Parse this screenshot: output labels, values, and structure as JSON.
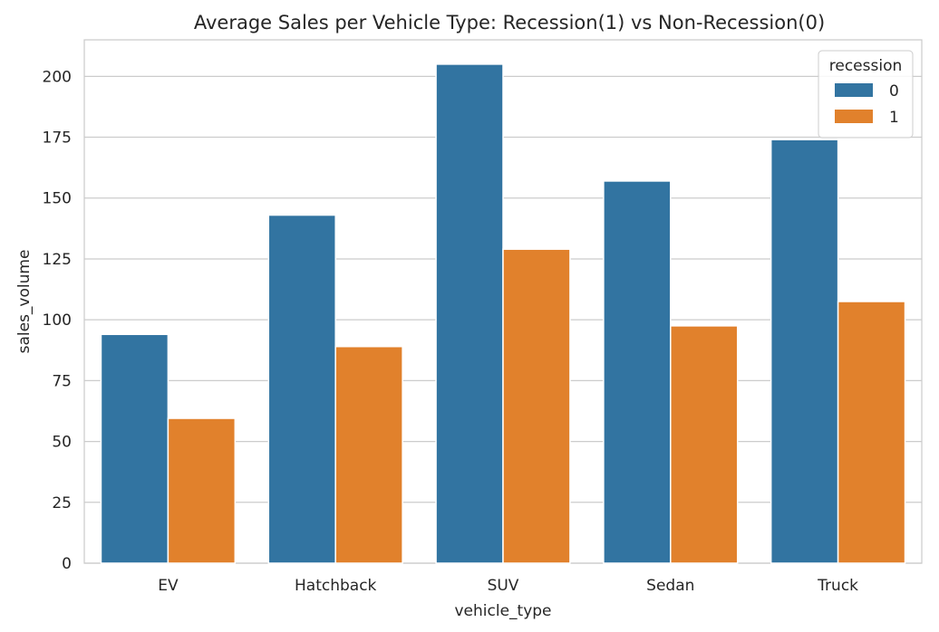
{
  "chart_data": {
    "type": "bar",
    "title": "Average Sales per Vehicle Type: Recession(1) vs Non-Recession(0)",
    "xlabel": "vehicle_type",
    "ylabel": "sales_volume",
    "categories": [
      "EV",
      "Hatchback",
      "SUV",
      "Sedan",
      "Truck"
    ],
    "series": [
      {
        "name": "0",
        "color": "#3274a1",
        "values": [
          94,
          143,
          205,
          157,
          174
        ]
      },
      {
        "name": "1",
        "color": "#e1812c",
        "values": [
          59.5,
          89,
          129,
          97.5,
          107.5
        ]
      }
    ],
    "ylim": [
      0,
      215
    ],
    "yticks": [
      0,
      25,
      50,
      75,
      100,
      125,
      150,
      175,
      200
    ],
    "grid": true,
    "legend": {
      "title": "recession",
      "placement": "top-right"
    }
  }
}
